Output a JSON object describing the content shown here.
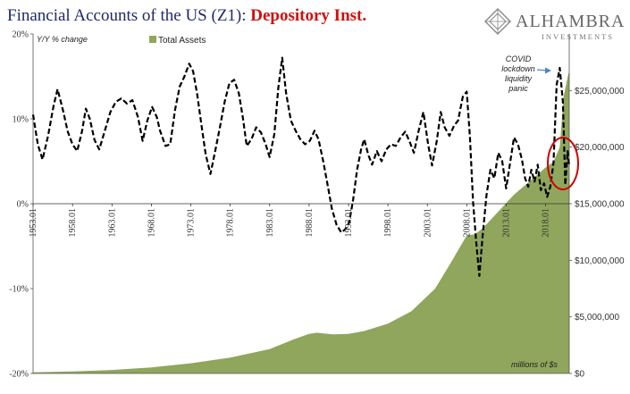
{
  "title_part1": "Financial Accounts of the US (Z1): ",
  "title_part2": "Depository Inst.",
  "logo": {
    "name": "ALHAMBRA",
    "sub": "INVESTMENTS"
  },
  "annotation": {
    "lines": [
      "COVID",
      "lockdown",
      "liquidity",
      "panic"
    ]
  },
  "colors": {
    "area": "#8fa65c",
    "line": "#000000",
    "circle": "#cc0000",
    "title": "#1f2a6b",
    "accent": "#d01010"
  },
  "chart_data": {
    "type": "line",
    "left_axis_label": "Y/Y % change",
    "right_axis_unit_label": "millions of $s",
    "legend": [
      {
        "name": "Total Assets",
        "type": "area"
      }
    ],
    "left_ylim": [
      -20,
      20
    ],
    "left_ticks": [
      "20%",
      "10%",
      "0%",
      "-10%",
      "-20%"
    ],
    "right_ylim": [
      0,
      30000000
    ],
    "right_ticks": [
      "$25,000,000",
      "$20,000,000",
      "$15,000,000",
      "$10,000,000",
      "$5,000,000",
      "$0"
    ],
    "x_ticks": [
      "1953.01",
      "1958.01",
      "1963.01",
      "1968.01",
      "1973.01",
      "1978.01",
      "1983.01",
      "1988.01",
      "1993.01",
      "1998.01",
      "2003.01",
      "2008.01",
      "2013.01",
      "2018.01"
    ],
    "x_range": [
      1953.0,
      2021.0
    ],
    "series": [
      {
        "name": "Total Assets",
        "type": "area",
        "points": [
          [
            1953.0,
            100000
          ],
          [
            1958.0,
            180000
          ],
          [
            1963.0,
            310000
          ],
          [
            1968.0,
            530000
          ],
          [
            1973.0,
            900000
          ],
          [
            1978.0,
            1400000
          ],
          [
            1983.0,
            2150000
          ],
          [
            1986.0,
            3000000
          ],
          [
            1988.0,
            3500000
          ],
          [
            1989.0,
            3600000
          ],
          [
            1991.0,
            3450000
          ],
          [
            1993.0,
            3500000
          ],
          [
            1995.0,
            3750000
          ],
          [
            1998.0,
            4400000
          ],
          [
            2001.0,
            5500000
          ],
          [
            2004.0,
            7500000
          ],
          [
            2006.0,
            9800000
          ],
          [
            2008.0,
            12200000
          ],
          [
            2009.0,
            12300000
          ],
          [
            2010.0,
            12800000
          ],
          [
            2012.0,
            14300000
          ],
          [
            2014.0,
            15800000
          ],
          [
            2016.0,
            17000000
          ],
          [
            2018.0,
            18200000
          ],
          [
            2019.0,
            18700000
          ],
          [
            2019.8,
            20000000
          ],
          [
            2020.3,
            24500000
          ],
          [
            2020.9,
            26500000
          ],
          [
            2021.0,
            26600000
          ]
        ]
      },
      {
        "name": "Y/Y % change",
        "type": "line",
        "points": [
          [
            1953.0,
            10.5
          ],
          [
            1953.6,
            7.0
          ],
          [
            1954.2,
            5.2
          ],
          [
            1954.9,
            8.0
          ],
          [
            1955.6,
            11.5
          ],
          [
            1956.1,
            13.5
          ],
          [
            1956.8,
            11.0
          ],
          [
            1957.4,
            8.5
          ],
          [
            1958.0,
            7.0
          ],
          [
            1958.6,
            6.2
          ],
          [
            1959.2,
            8.5
          ],
          [
            1959.7,
            11.2
          ],
          [
            1960.2,
            10.0
          ],
          [
            1960.8,
            7.5
          ],
          [
            1961.4,
            6.4
          ],
          [
            1962.1,
            8.6
          ],
          [
            1962.8,
            10.8
          ],
          [
            1963.5,
            12.0
          ],
          [
            1964.2,
            12.4
          ],
          [
            1964.9,
            11.8
          ],
          [
            1965.6,
            12.2
          ],
          [
            1966.3,
            10.2
          ],
          [
            1966.9,
            7.4
          ],
          [
            1967.5,
            9.8
          ],
          [
            1968.1,
            11.4
          ],
          [
            1968.7,
            10.2
          ],
          [
            1969.1,
            8.6
          ],
          [
            1969.8,
            6.8
          ],
          [
            1970.4,
            7.0
          ],
          [
            1971.0,
            11.0
          ],
          [
            1971.6,
            13.8
          ],
          [
            1972.2,
            15.0
          ],
          [
            1972.8,
            16.5
          ],
          [
            1973.3,
            15.6
          ],
          [
            1973.8,
            13.0
          ],
          [
            1974.4,
            9.0
          ],
          [
            1974.9,
            5.8
          ],
          [
            1975.5,
            3.5
          ],
          [
            1976.1,
            6.2
          ],
          [
            1976.7,
            9.0
          ],
          [
            1977.3,
            12.0
          ],
          [
            1977.9,
            14.2
          ],
          [
            1978.5,
            14.6
          ],
          [
            1979.1,
            13.0
          ],
          [
            1979.6,
            10.2
          ],
          [
            1980.1,
            6.8
          ],
          [
            1980.7,
            7.6
          ],
          [
            1981.3,
            9.0
          ],
          [
            1981.9,
            8.4
          ],
          [
            1982.5,
            7.0
          ],
          [
            1983.0,
            5.5
          ],
          [
            1983.6,
            8.2
          ],
          [
            1984.1,
            13.6
          ],
          [
            1984.6,
            17.2
          ],
          [
            1985.1,
            13.0
          ],
          [
            1985.7,
            9.8
          ],
          [
            1986.3,
            8.6
          ],
          [
            1986.9,
            7.6
          ],
          [
            1987.5,
            7.0
          ],
          [
            1988.1,
            7.4
          ],
          [
            1988.7,
            8.6
          ],
          [
            1989.2,
            7.6
          ],
          [
            1989.8,
            5.0
          ],
          [
            1990.4,
            2.0
          ],
          [
            1990.9,
            -0.6
          ],
          [
            1991.5,
            -2.5
          ],
          [
            1992.1,
            -3.4
          ],
          [
            1992.6,
            -3.0
          ],
          [
            1993.1,
            -2.2
          ],
          [
            1993.6,
            0.5
          ],
          [
            1994.1,
            4.0
          ],
          [
            1994.6,
            6.4
          ],
          [
            1995.0,
            7.6
          ],
          [
            1995.5,
            5.8
          ],
          [
            1996.0,
            4.6
          ],
          [
            1996.6,
            6.2
          ],
          [
            1997.2,
            5.0
          ],
          [
            1997.8,
            6.4
          ],
          [
            1998.4,
            7.0
          ],
          [
            1999.0,
            6.8
          ],
          [
            1999.6,
            7.8
          ],
          [
            2000.2,
            8.5
          ],
          [
            2000.8,
            7.2
          ],
          [
            2001.3,
            6.0
          ],
          [
            2001.9,
            8.6
          ],
          [
            2002.5,
            10.8
          ],
          [
            2003.1,
            7.0
          ],
          [
            2003.6,
            4.5
          ],
          [
            2004.2,
            7.4
          ],
          [
            2004.7,
            10.8
          ],
          [
            2005.2,
            9.0
          ],
          [
            2005.8,
            8.0
          ],
          [
            2006.4,
            9.2
          ],
          [
            2006.9,
            9.8
          ],
          [
            2007.5,
            12.6
          ],
          [
            2008.0,
            13.2
          ],
          [
            2008.4,
            8.0
          ],
          [
            2008.8,
            0.2
          ],
          [
            2009.2,
            -4.5
          ],
          [
            2009.6,
            -8.5
          ],
          [
            2010.0,
            -4.0
          ],
          [
            2010.5,
            1.0
          ],
          [
            2011.0,
            4.0
          ],
          [
            2011.5,
            3.0
          ],
          [
            2012.0,
            6.0
          ],
          [
            2012.5,
            5.0
          ],
          [
            2013.0,
            1.8
          ],
          [
            2013.5,
            4.8
          ],
          [
            2014.0,
            7.8
          ],
          [
            2014.5,
            7.0
          ],
          [
            2015.0,
            5.2
          ],
          [
            2015.4,
            3.0
          ],
          [
            2015.8,
            2.0
          ],
          [
            2016.2,
            4.0
          ],
          [
            2016.6,
            2.6
          ],
          [
            2017.0,
            4.6
          ],
          [
            2017.4,
            1.6
          ],
          [
            2017.8,
            2.4
          ],
          [
            2018.2,
            0.8
          ],
          [
            2018.6,
            2.0
          ],
          [
            2019.0,
            4.8
          ],
          [
            2019.4,
            14.0
          ],
          [
            2019.8,
            16.0
          ],
          [
            2020.2,
            12.0
          ],
          [
            2020.5,
            2.2
          ],
          [
            2020.8,
            6.2
          ],
          [
            2021.0,
            4.4
          ]
        ]
      }
    ]
  }
}
